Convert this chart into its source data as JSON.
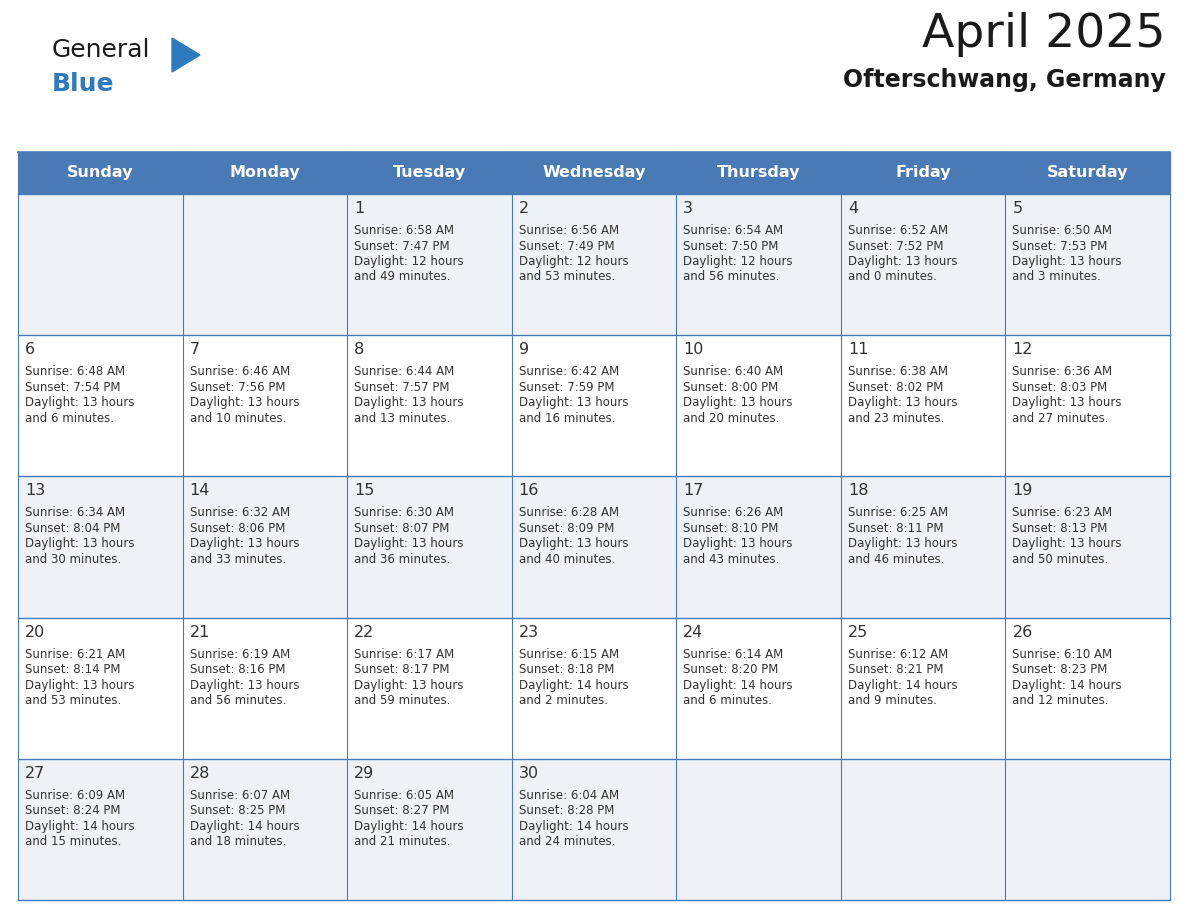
{
  "title": "April 2025",
  "subtitle": "Ofterschwang, Germany",
  "days_of_week": [
    "Sunday",
    "Monday",
    "Tuesday",
    "Wednesday",
    "Thursday",
    "Friday",
    "Saturday"
  ],
  "header_bg": "#4a7ab5",
  "header_text": "#ffffff",
  "row_bg_odd": "#eef2f7",
  "row_bg_even": "#ffffff",
  "border_color": "#4a7ab5",
  "text_color": "#333333",
  "title_color": "#1a1a1a",
  "subtitle_color": "#1a1a1a",
  "calendar_data": [
    [
      {
        "day": "",
        "sunrise": "",
        "sunset": "",
        "daylight": ""
      },
      {
        "day": "",
        "sunrise": "",
        "sunset": "",
        "daylight": ""
      },
      {
        "day": "1",
        "sunrise": "6:58 AM",
        "sunset": "7:47 PM",
        "daylight": "12 hours and 49 minutes."
      },
      {
        "day": "2",
        "sunrise": "6:56 AM",
        "sunset": "7:49 PM",
        "daylight": "12 hours and 53 minutes."
      },
      {
        "day": "3",
        "sunrise": "6:54 AM",
        "sunset": "7:50 PM",
        "daylight": "12 hours and 56 minutes."
      },
      {
        "day": "4",
        "sunrise": "6:52 AM",
        "sunset": "7:52 PM",
        "daylight": "13 hours and 0 minutes."
      },
      {
        "day": "5",
        "sunrise": "6:50 AM",
        "sunset": "7:53 PM",
        "daylight": "13 hours and 3 minutes."
      }
    ],
    [
      {
        "day": "6",
        "sunrise": "6:48 AM",
        "sunset": "7:54 PM",
        "daylight": "13 hours and 6 minutes."
      },
      {
        "day": "7",
        "sunrise": "6:46 AM",
        "sunset": "7:56 PM",
        "daylight": "13 hours and 10 minutes."
      },
      {
        "day": "8",
        "sunrise": "6:44 AM",
        "sunset": "7:57 PM",
        "daylight": "13 hours and 13 minutes."
      },
      {
        "day": "9",
        "sunrise": "6:42 AM",
        "sunset": "7:59 PM",
        "daylight": "13 hours and 16 minutes."
      },
      {
        "day": "10",
        "sunrise": "6:40 AM",
        "sunset": "8:00 PM",
        "daylight": "13 hours and 20 minutes."
      },
      {
        "day": "11",
        "sunrise": "6:38 AM",
        "sunset": "8:02 PM",
        "daylight": "13 hours and 23 minutes."
      },
      {
        "day": "12",
        "sunrise": "6:36 AM",
        "sunset": "8:03 PM",
        "daylight": "13 hours and 27 minutes."
      }
    ],
    [
      {
        "day": "13",
        "sunrise": "6:34 AM",
        "sunset": "8:04 PM",
        "daylight": "13 hours and 30 minutes."
      },
      {
        "day": "14",
        "sunrise": "6:32 AM",
        "sunset": "8:06 PM",
        "daylight": "13 hours and 33 minutes."
      },
      {
        "day": "15",
        "sunrise": "6:30 AM",
        "sunset": "8:07 PM",
        "daylight": "13 hours and 36 minutes."
      },
      {
        "day": "16",
        "sunrise": "6:28 AM",
        "sunset": "8:09 PM",
        "daylight": "13 hours and 40 minutes."
      },
      {
        "day": "17",
        "sunrise": "6:26 AM",
        "sunset": "8:10 PM",
        "daylight": "13 hours and 43 minutes."
      },
      {
        "day": "18",
        "sunrise": "6:25 AM",
        "sunset": "8:11 PM",
        "daylight": "13 hours and 46 minutes."
      },
      {
        "day": "19",
        "sunrise": "6:23 AM",
        "sunset": "8:13 PM",
        "daylight": "13 hours and 50 minutes."
      }
    ],
    [
      {
        "day": "20",
        "sunrise": "6:21 AM",
        "sunset": "8:14 PM",
        "daylight": "13 hours and 53 minutes."
      },
      {
        "day": "21",
        "sunrise": "6:19 AM",
        "sunset": "8:16 PM",
        "daylight": "13 hours and 56 minutes."
      },
      {
        "day": "22",
        "sunrise": "6:17 AM",
        "sunset": "8:17 PM",
        "daylight": "13 hours and 59 minutes."
      },
      {
        "day": "23",
        "sunrise": "6:15 AM",
        "sunset": "8:18 PM",
        "daylight": "14 hours and 2 minutes."
      },
      {
        "day": "24",
        "sunrise": "6:14 AM",
        "sunset": "8:20 PM",
        "daylight": "14 hours and 6 minutes."
      },
      {
        "day": "25",
        "sunrise": "6:12 AM",
        "sunset": "8:21 PM",
        "daylight": "14 hours and 9 minutes."
      },
      {
        "day": "26",
        "sunrise": "6:10 AM",
        "sunset": "8:23 PM",
        "daylight": "14 hours and 12 minutes."
      }
    ],
    [
      {
        "day": "27",
        "sunrise": "6:09 AM",
        "sunset": "8:24 PM",
        "daylight": "14 hours and 15 minutes."
      },
      {
        "day": "28",
        "sunrise": "6:07 AM",
        "sunset": "8:25 PM",
        "daylight": "14 hours and 18 minutes."
      },
      {
        "day": "29",
        "sunrise": "6:05 AM",
        "sunset": "8:27 PM",
        "daylight": "14 hours and 21 minutes."
      },
      {
        "day": "30",
        "sunrise": "6:04 AM",
        "sunset": "8:28 PM",
        "daylight": "14 hours and 24 minutes."
      },
      {
        "day": "",
        "sunrise": "",
        "sunset": "",
        "daylight": ""
      },
      {
        "day": "",
        "sunrise": "",
        "sunset": "",
        "daylight": ""
      },
      {
        "day": "",
        "sunrise": "",
        "sunset": "",
        "daylight": ""
      }
    ]
  ],
  "logo_text1": "General",
  "logo_text2": "Blue",
  "logo_color1": "#1a1a1a",
  "logo_color2": "#2e7abf",
  "triangle_color": "#2e7abf",
  "fig_width": 11.88,
  "fig_height": 9.18,
  "dpi": 100
}
